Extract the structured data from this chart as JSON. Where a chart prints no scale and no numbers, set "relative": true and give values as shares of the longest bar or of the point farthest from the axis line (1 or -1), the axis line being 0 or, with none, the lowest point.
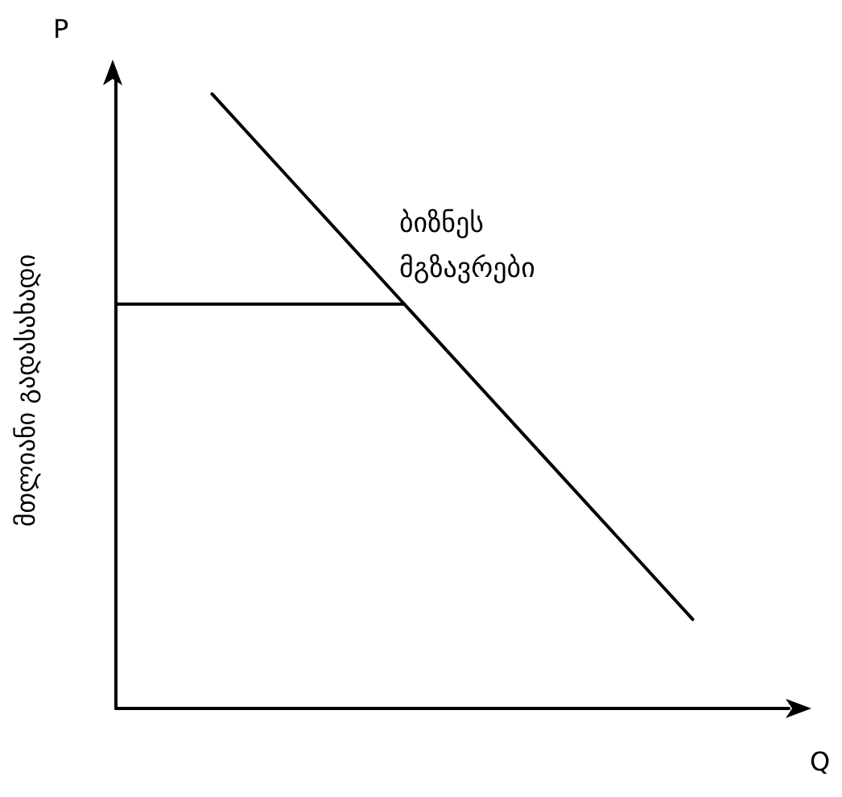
{
  "chart_data": {
    "type": "line",
    "relative": true,
    "xlabel": "Q",
    "ylabel": "მთლიანი გადასახადი",
    "annotations": [
      "P",
      "ბიზნეს მგზავრები"
    ],
    "categories": [
      null,
      null,
      null,
      null,
      null,
      null,
      null,
      null
    ],
    "series": [
      {
        "color": "#000000",
        "values": [
          null,
          1,
          0.829,
          0.658,
          0.487,
          0.316,
          0.145,
          null
        ]
      },
      {
        "color": "#000000",
        "values": [
          0.658,
          0.658,
          0.658,
          0.658,
          null,
          null,
          null,
          null
        ]
      }
    ],
    "marker": "none",
    "line_style": "solid",
    "grid": false
  }
}
